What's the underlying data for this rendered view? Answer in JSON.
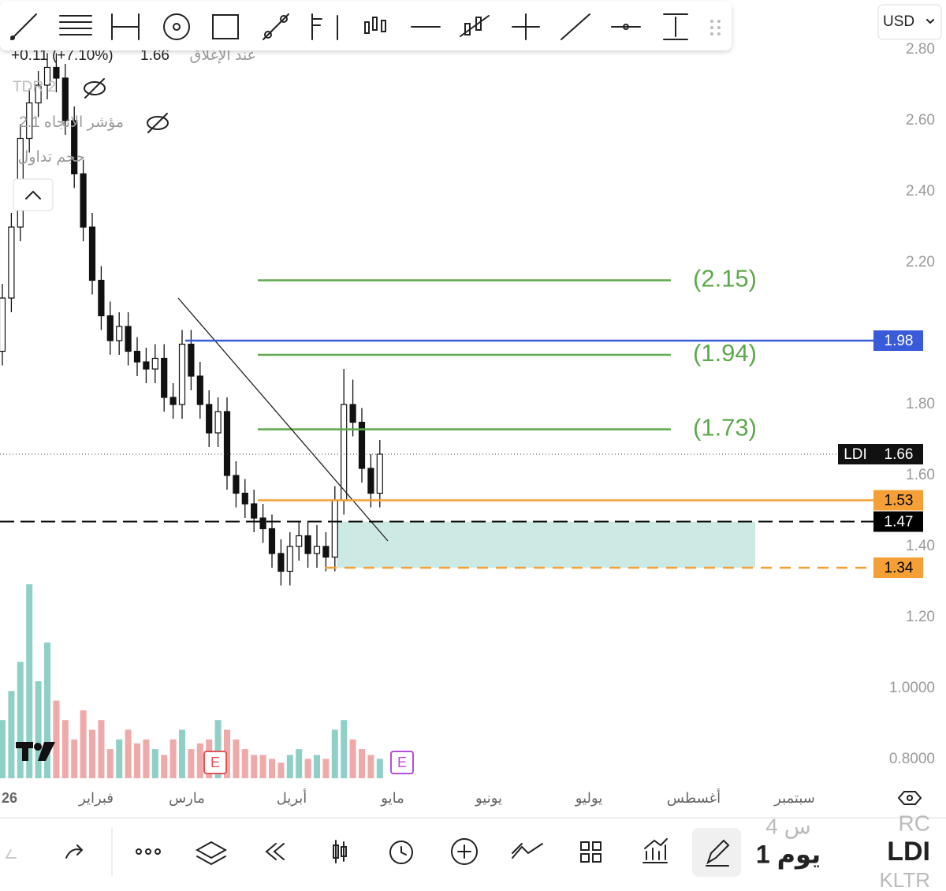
{
  "toolbar": {
    "currency": "USD"
  },
  "legend": {
    "change": "+0.11 (+7.10%)",
    "close": "1.66",
    "close_label": "عند الإغلاق",
    "indicators": [
      "TDR 2",
      "مؤشر الاتجاه 2.1",
      "حجم تداول"
    ]
  },
  "chart_data": {
    "type": "candlestick",
    "ohlc": [
      [
        1.95,
        2.14,
        1.91,
        2.1
      ],
      [
        2.1,
        2.34,
        2.06,
        2.3
      ],
      [
        2.3,
        2.59,
        2.26,
        2.55
      ],
      [
        2.55,
        2.69,
        2.51,
        2.65
      ],
      [
        2.65,
        2.74,
        2.61,
        2.7
      ],
      [
        2.7,
        2.79,
        2.66,
        2.75
      ],
      [
        2.75,
        2.79,
        2.68,
        2.72
      ],
      [
        2.72,
        2.76,
        2.56,
        2.6
      ],
      [
        2.6,
        2.64,
        2.41,
        2.45
      ],
      [
        2.45,
        2.49,
        2.26,
        2.3
      ],
      [
        2.3,
        2.34,
        2.11,
        2.15
      ],
      [
        2.15,
        2.19,
        2.01,
        2.05
      ],
      [
        2.05,
        2.09,
        1.94,
        1.98
      ],
      [
        1.98,
        2.06,
        1.94,
        2.02
      ],
      [
        2.02,
        2.06,
        1.91,
        1.95
      ],
      [
        1.95,
        1.99,
        1.88,
        1.92
      ],
      [
        1.92,
        1.96,
        1.86,
        1.9
      ],
      [
        1.9,
        1.97,
        1.86,
        1.93
      ],
      [
        1.93,
        1.97,
        1.78,
        1.82
      ],
      [
        1.82,
        1.86,
        1.76,
        1.8
      ],
      [
        1.8,
        2.01,
        1.76,
        1.97
      ],
      [
        1.97,
        2.01,
        1.84,
        1.88
      ],
      [
        1.88,
        1.92,
        1.76,
        1.8
      ],
      [
        1.8,
        1.84,
        1.68,
        1.72
      ],
      [
        1.72,
        1.82,
        1.68,
        1.78
      ],
      [
        1.78,
        1.82,
        1.56,
        1.6
      ],
      [
        1.6,
        1.64,
        1.51,
        1.55
      ],
      [
        1.55,
        1.59,
        1.48,
        1.52
      ],
      [
        1.52,
        1.56,
        1.44,
        1.48
      ],
      [
        1.48,
        1.52,
        1.41,
        1.45
      ],
      [
        1.45,
        1.49,
        1.34,
        1.38
      ],
      [
        1.38,
        1.42,
        1.29,
        1.33
      ],
      [
        1.33,
        1.44,
        1.29,
        1.4
      ],
      [
        1.4,
        1.47,
        1.36,
        1.43
      ],
      [
        1.43,
        1.47,
        1.34,
        1.38
      ],
      [
        1.38,
        1.46,
        1.34,
        1.4
      ],
      [
        1.4,
        1.44,
        1.33,
        1.37
      ],
      [
        1.37,
        1.57,
        1.33,
        1.53
      ],
      [
        1.53,
        1.9,
        1.49,
        1.8
      ],
      [
        1.8,
        1.87,
        1.71,
        1.75
      ],
      [
        1.75,
        1.79,
        1.58,
        1.62
      ],
      [
        1.62,
        1.66,
        1.51,
        1.55
      ],
      [
        1.55,
        1.7,
        1.51,
        1.66
      ]
    ],
    "volume": [
      30,
      45,
      60,
      100,
      50,
      70,
      40,
      30,
      20,
      35,
      25,
      30,
      15,
      20,
      25,
      18,
      20,
      15,
      12,
      20,
      25,
      15,
      18,
      20,
      30,
      25,
      20,
      15,
      12,
      12,
      10,
      8,
      12,
      15,
      10,
      12,
      10,
      25,
      30,
      20,
      15,
      12,
      10
    ],
    "up_color": "#8fd0c6",
    "down_color": "#f0a9a9",
    "ylim": [
      0.74,
      2.94
    ],
    "yticks": [
      {
        "value": 2.8,
        "label": "2.80"
      },
      {
        "value": 2.6,
        "label": "2.60"
      },
      {
        "value": 2.4,
        "label": "2.40"
      },
      {
        "value": 2.2,
        "label": "2.20"
      },
      {
        "value": 1.8,
        "label": "1.80"
      },
      {
        "value": 1.6,
        "label": "1.60"
      },
      {
        "value": 1.4,
        "label": "1.40"
      },
      {
        "value": 1.2,
        "label": "1.20"
      },
      {
        "value": 1.0,
        "label": "1.0000"
      },
      {
        "value": 0.8,
        "label": "0.8000"
      }
    ],
    "x_labels": [
      "26",
      "فبراير",
      "مارس",
      "أبريل",
      "مايو",
      "يونيو",
      "يوليو",
      "أغسطس",
      "سبتمبر"
    ],
    "fib_levels": [
      {
        "value": 2.15,
        "label": "(2.15)"
      },
      {
        "value": 1.94,
        "label": "(1.94)"
      },
      {
        "value": 1.73,
        "label": "(1.73)"
      }
    ],
    "fib_color": "#5ea84d",
    "price_lines": [
      {
        "value": 1.98,
        "color": "#3a5bd9",
        "text_color": "#ffffff"
      },
      {
        "value": 1.53,
        "color": "#f5a036",
        "text_color": "#000000"
      },
      {
        "value": 1.47,
        "color": "#000000",
        "text_color": "#ffffff"
      },
      {
        "value": 1.34,
        "color": "#f5a036",
        "text_color": "#000000"
      }
    ],
    "zone": [
      1.47,
      1.34
    ],
    "zone_color": "#cde9e4",
    "last_price": {
      "name": "LDI",
      "value": 1.66
    },
    "events": [
      "E",
      "E"
    ]
  },
  "bottom_bar": {
    "interval_top": "4 س",
    "interval": "1 يوم",
    "prefix": "RC",
    "symbol": "LDI",
    "exchange": "KLTR"
  }
}
